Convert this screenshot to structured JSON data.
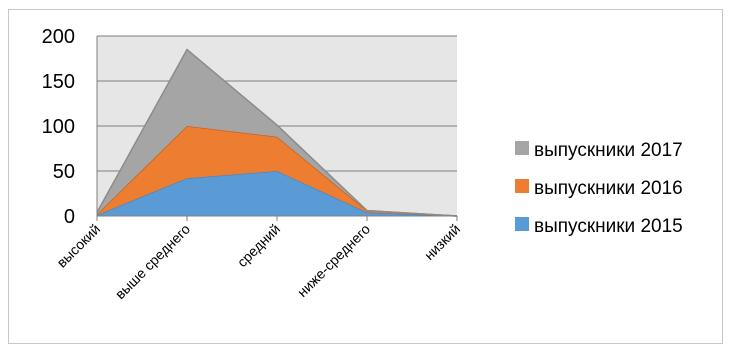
{
  "chart_data": {
    "type": "area",
    "stacked": true,
    "categories": [
      "высокий",
      "выше среднего",
      "средний",
      "ниже-среднего",
      "низкий"
    ],
    "series": [
      {
        "name": "выпускники 2015",
        "values": [
          1,
          42,
          50,
          4,
          0
        ],
        "color": "#5b9bd5"
      },
      {
        "name": "выпускники 2016",
        "values": [
          1,
          58,
          38,
          2,
          0
        ],
        "color": "#ed7d31"
      },
      {
        "name": "выпускники 2017",
        "values": [
          2,
          85,
          13,
          0,
          0
        ],
        "color": "#a5a5a5"
      }
    ],
    "ylim": [
      0,
      200
    ],
    "yticks": [
      "0",
      "50",
      "100",
      "150",
      "200"
    ],
    "grid": true,
    "legend_position": "right",
    "legend_order": [
      "выпускники 2017",
      "выпускники 2016",
      "выпускники 2015"
    ],
    "plot_background": "#e6e6e6",
    "title": "",
    "xlabel": "",
    "ylabel": ""
  }
}
